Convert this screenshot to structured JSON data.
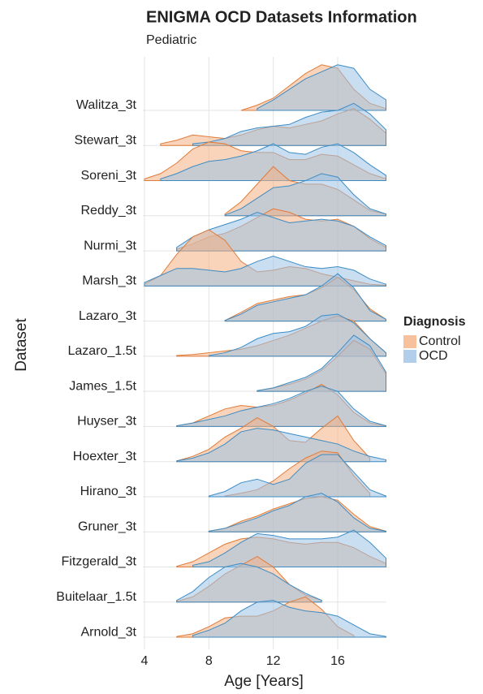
{
  "chart_data": {
    "type": "ridgeline",
    "title": "ENIGMA OCD Datasets Information",
    "subtitle": "Pediatric",
    "x_label": "Age [Years]",
    "y_label": "Dataset",
    "legend_title": "Diagnosis",
    "x": [
      4,
      5,
      6,
      7,
      8,
      9,
      10,
      11,
      12,
      13,
      14,
      15,
      16,
      17,
      18,
      19
    ],
    "xlim": [
      3.9,
      19
    ],
    "xticks": [
      4,
      8,
      12,
      16
    ],
    "grid": true,
    "categories": [
      "Walitza_3t",
      "Stewart_3t",
      "Soreni_3t",
      "Reddy_3t",
      "Nurmi_3t",
      "Marsh_3t",
      "Lazaro_3t",
      "Lazaro_1.5t",
      "James_1.5t",
      "Huyser_3t",
      "Hoexter_3t",
      "Hirano_3t",
      "Gruner_3t",
      "Fitzgerald_3t",
      "Buitelaar_1.5t",
      "Arnold_3t"
    ],
    "series": [
      {
        "name": "Control",
        "color": "#f4b183",
        "line_color": "#e07b39",
        "values": [
          [
            null,
            null,
            null,
            null,
            null,
            null,
            0,
            0.15,
            0.35,
            0.7,
            1.05,
            1.3,
            1.2,
            0.6,
            0.2,
            0.05
          ],
          [
            null,
            0.05,
            0.15,
            0.3,
            0.25,
            0.2,
            0.3,
            0.45,
            0.55,
            0.5,
            0.6,
            0.7,
            0.9,
            1.05,
            0.75,
            0.35
          ],
          [
            0.05,
            0.2,
            0.5,
            0.9,
            1.1,
            1.05,
            0.85,
            0.8,
            0.8,
            0.6,
            0.6,
            0.75,
            0.7,
            0.45,
            0.2,
            0.05
          ],
          [
            null,
            null,
            null,
            null,
            null,
            0.05,
            0.4,
            0.9,
            1.4,
            1.0,
            0.9,
            0.9,
            0.75,
            0.45,
            0.15,
            0.05
          ],
          [
            null,
            null,
            0.05,
            0.2,
            0.4,
            0.5,
            0.7,
            0.95,
            1.2,
            1.1,
            0.9,
            0.85,
            0.9,
            0.7,
            0.35,
            0.1
          ],
          [
            0.05,
            0.3,
            0.9,
            1.4,
            1.6,
            1.3,
            0.7,
            0.4,
            0.45,
            0.55,
            0.5,
            0.35,
            0.25,
            0.15,
            0.05,
            0.02
          ],
          [
            null,
            null,
            null,
            null,
            null,
            0.02,
            0.25,
            0.5,
            0.6,
            0.7,
            0.75,
            0.95,
            1.25,
            0.9,
            0.35,
            0.05
          ],
          [
            null,
            null,
            0.02,
            0.05,
            0.1,
            0.15,
            0.2,
            0.3,
            0.45,
            0.6,
            0.8,
            1.0,
            1.15,
            1.0,
            0.5,
            0.1
          ],
          [
            null,
            null,
            null,
            null,
            null,
            null,
            null,
            0.02,
            0.1,
            0.2,
            0.35,
            0.6,
            1.0,
            1.45,
            1.2,
            0.5
          ],
          [
            null,
            null,
            0.02,
            0.1,
            0.3,
            0.5,
            0.6,
            0.55,
            0.6,
            0.75,
            0.95,
            1.2,
            0.9,
            0.4,
            0.1,
            0.02
          ],
          [
            null,
            null,
            0.02,
            0.15,
            0.35,
            0.7,
            0.95,
            1.25,
            1.0,
            0.6,
            0.55,
            0.95,
            1.3,
            0.6,
            0.1,
            null
          ],
          [
            null,
            null,
            null,
            null,
            null,
            0.02,
            0.1,
            0.2,
            0.45,
            0.8,
            1.1,
            1.3,
            1.25,
            0.6,
            0.1,
            null
          ],
          [
            null,
            null,
            null,
            null,
            0.02,
            0.1,
            0.3,
            0.45,
            0.65,
            0.8,
            0.95,
            1.0,
            0.9,
            0.5,
            0.15,
            0.02
          ],
          [
            null,
            null,
            0.02,
            0.15,
            0.4,
            0.65,
            0.8,
            0.85,
            0.8,
            0.7,
            0.65,
            0.7,
            0.7,
            0.55,
            0.3,
            0.1
          ],
          [
            null,
            null,
            0.02,
            0.15,
            0.45,
            0.8,
            1.05,
            1.3,
            1.0,
            0.5,
            0.2,
            0.05,
            null,
            null,
            null,
            null
          ],
          [
            null,
            null,
            0.02,
            0.1,
            0.3,
            0.55,
            0.6,
            0.6,
            0.75,
            1.0,
            1.15,
            0.8,
            0.3,
            0.05,
            null,
            null
          ]
        ]
      },
      {
        "name": "OCD",
        "color": "#9dc3e6",
        "line_color": "#3d8cc4",
        "values": [
          [
            null,
            null,
            null,
            null,
            null,
            null,
            null,
            0.05,
            0.3,
            0.6,
            0.9,
            1.1,
            1.3,
            1.2,
            0.6,
            0.3
          ],
          [
            null,
            null,
            null,
            0.05,
            0.1,
            0.2,
            0.4,
            0.5,
            0.55,
            0.6,
            0.8,
            0.95,
            1.0,
            1.2,
            0.9,
            0.45
          ],
          [
            null,
            0.05,
            0.2,
            0.4,
            0.55,
            0.6,
            0.7,
            0.85,
            1.05,
            0.8,
            0.75,
            0.95,
            1.05,
            0.8,
            0.45,
            0.15
          ],
          [
            null,
            null,
            null,
            null,
            null,
            0.02,
            0.2,
            0.5,
            0.8,
            0.85,
            1.0,
            1.2,
            1.1,
            0.6,
            0.2,
            0.05
          ],
          [
            null,
            null,
            0.1,
            0.4,
            0.6,
            0.75,
            0.9,
            1.1,
            0.95,
            0.8,
            0.85,
            0.9,
            0.85,
            0.7,
            0.4,
            0.15
          ],
          [
            0.1,
            0.3,
            0.5,
            0.5,
            0.45,
            0.4,
            0.5,
            0.7,
            0.85,
            0.7,
            0.55,
            0.5,
            0.55,
            0.45,
            0.2,
            0.05
          ],
          [
            null,
            null,
            null,
            null,
            null,
            0.02,
            0.2,
            0.45,
            0.55,
            0.65,
            0.75,
            1.0,
            1.35,
            0.95,
            0.3,
            0.05
          ],
          [
            null,
            null,
            null,
            null,
            0.02,
            0.1,
            0.25,
            0.5,
            0.65,
            0.7,
            0.85,
            1.15,
            1.2,
            0.95,
            0.5,
            0.1
          ],
          [
            null,
            null,
            null,
            null,
            null,
            null,
            null,
            0.02,
            0.1,
            0.25,
            0.4,
            0.65,
            1.1,
            1.6,
            1.3,
            0.55
          ],
          [
            null,
            null,
            0.02,
            0.1,
            0.2,
            0.3,
            0.45,
            0.55,
            0.65,
            0.8,
            1.0,
            1.15,
            1.0,
            0.5,
            0.15,
            0.02
          ],
          [
            null,
            null,
            0.02,
            0.1,
            0.25,
            0.5,
            0.85,
            0.95,
            0.9,
            0.8,
            0.7,
            0.6,
            0.5,
            0.3,
            0.15,
            0.05
          ],
          [
            null,
            null,
            null,
            null,
            0.02,
            0.15,
            0.4,
            0.5,
            0.35,
            0.5,
            0.95,
            1.2,
            1.2,
            0.7,
            0.2,
            0.02
          ],
          [
            null,
            null,
            null,
            null,
            0.02,
            0.1,
            0.25,
            0.4,
            0.6,
            0.75,
            1.0,
            1.1,
            0.85,
            0.4,
            0.1,
            0.02
          ],
          [
            null,
            null,
            null,
            0.05,
            0.15,
            0.4,
            0.7,
            0.95,
            0.9,
            0.8,
            0.8,
            0.8,
            0.85,
            1.05,
            0.7,
            0.25
          ],
          [
            null,
            null,
            0.05,
            0.3,
            0.7,
            1.0,
            1.1,
            1.0,
            0.8,
            0.5,
            0.25,
            0.05,
            null,
            null,
            null,
            null
          ],
          [
            null,
            null,
            null,
            0.05,
            0.2,
            0.4,
            0.75,
            1.0,
            1.05,
            0.85,
            0.75,
            0.7,
            0.6,
            0.35,
            0.1,
            0.02
          ]
        ]
      }
    ]
  }
}
